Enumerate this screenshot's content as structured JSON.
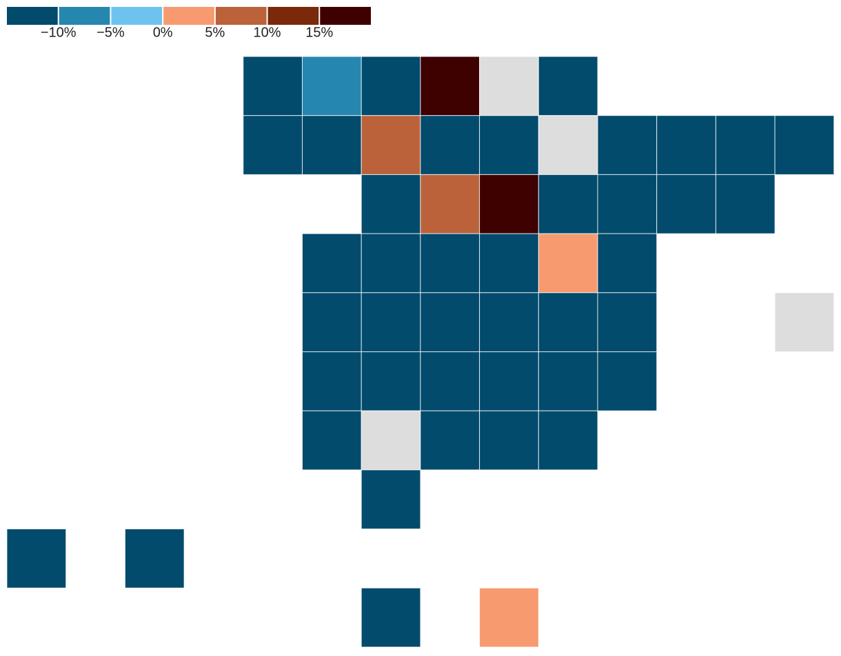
{
  "chart_data": {
    "type": "tilemap",
    "legend": {
      "colors": [
        "#024b6c",
        "#2587b0",
        "#6dc3ee",
        "#f79a6f",
        "#bb623a",
        "#7a290b",
        "#3f0000"
      ],
      "ticks": [
        {
          "value": -10,
          "label": "−10%"
        },
        {
          "value": -5,
          "label": "−5%"
        },
        {
          "value": 0,
          "label": "0%"
        },
        {
          "value": 5,
          "label": "5%"
        },
        {
          "value": 10,
          "label": "10%"
        },
        {
          "value": 15,
          "label": "15%"
        }
      ]
    },
    "no_data_color": "#dddddd",
    "values": [
      -12,
      -7.5,
      -12,
      17.5,
      null,
      -12,
      -12,
      -12,
      7.5,
      -12,
      -12,
      null,
      -12,
      -12,
      -12,
      -12,
      -12,
      7.5,
      17.5,
      -12,
      -12,
      -12,
      -12,
      -12,
      -12,
      -12,
      -12,
      2.5,
      -12,
      -12,
      -12,
      -12,
      -12,
      -12,
      -12,
      null,
      -12,
      -12,
      -12,
      -12,
      -12,
      -12,
      -12,
      null,
      -12,
      -12,
      -12,
      -12,
      -12,
      -12,
      -12,
      2.5
    ]
  }
}
